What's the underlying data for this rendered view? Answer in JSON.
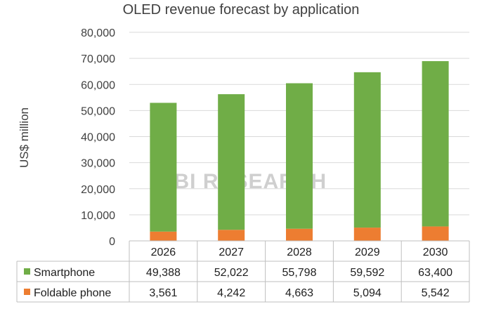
{
  "chart_data": {
    "type": "bar",
    "stacked": true,
    "title": "OLED revenue forecast by application",
    "ylabel": "US$ million",
    "xlabel": "",
    "ylim": [
      0,
      80000
    ],
    "yticks": [
      0,
      10000,
      20000,
      30000,
      40000,
      50000,
      60000,
      70000,
      80000
    ],
    "ytick_labels": [
      "0",
      "10,000",
      "20,000",
      "30,000",
      "40,000",
      "50,000",
      "60,000",
      "70,000",
      "80,000"
    ],
    "grid": true,
    "legend": "data-table",
    "categories": [
      "2026",
      "2027",
      "2028",
      "2029",
      "2030"
    ],
    "series": [
      {
        "name": "Foldable phone",
        "color": "#ED7D31",
        "values": [
          3561,
          4242,
          4663,
          5094,
          5542
        ],
        "labels": [
          "3,561",
          "4,242",
          "4,663",
          "5,094",
          "5,542"
        ]
      },
      {
        "name": "Smartphone",
        "color": "#70AD47",
        "values": [
          49388,
          52022,
          55798,
          59592,
          63400
        ],
        "labels": [
          "49,388",
          "52,022",
          "55,798",
          "59,592",
          "63,400"
        ]
      }
    ],
    "table_order": [
      "Smartphone",
      "Foldable phone"
    ],
    "watermark": "UBI RESEARCH"
  }
}
